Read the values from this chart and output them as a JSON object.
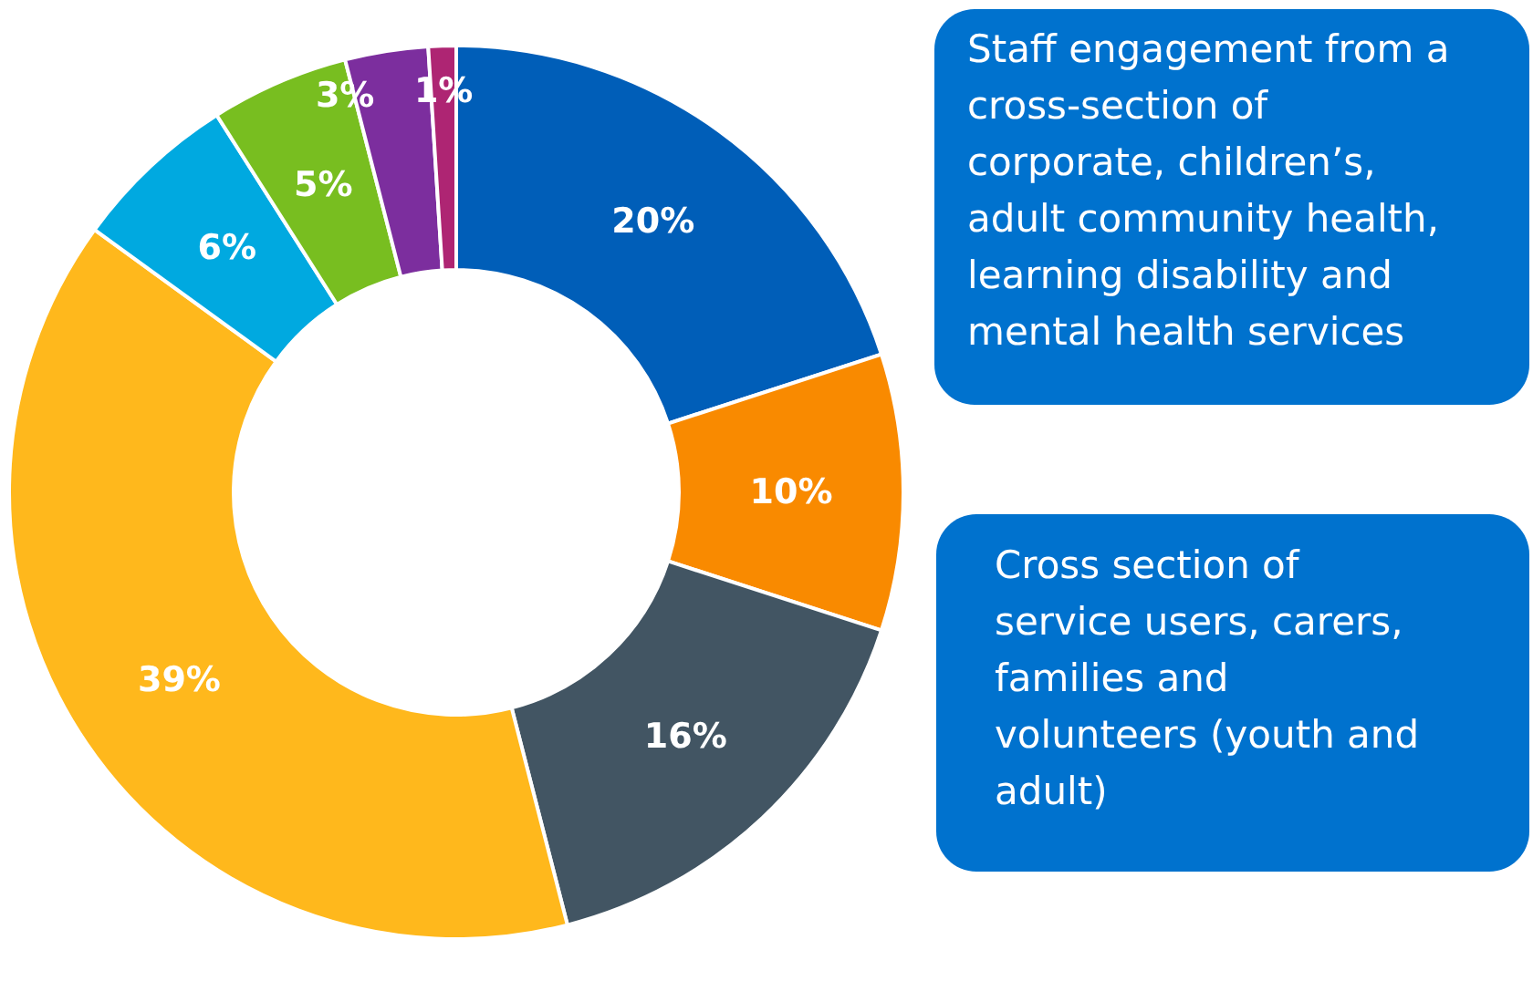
{
  "chart_data": {
    "type": "donut",
    "categories": [
      null,
      null,
      null,
      null,
      null,
      null,
      null,
      null
    ],
    "values": [
      20,
      10,
      16,
      39,
      6,
      5,
      3,
      1
    ],
    "colors": [
      "#005eb8",
      "#f98a00",
      "#425563",
      "#ffb81c",
      "#00a9e0",
      "#78be20",
      "#7c2e9e",
      "#ae2573"
    ],
    "value_labels": [
      "20%",
      "10%",
      "16%",
      "39%",
      "6%",
      "5%",
      "3%",
      "1%"
    ],
    "annotations": [
      "Staff engagement from a cross-section of corporate, children’s, adult community health, learning disability and mental health services",
      "Cross section of service users, carers, families and volunteers (youth and adult)"
    ]
  }
}
